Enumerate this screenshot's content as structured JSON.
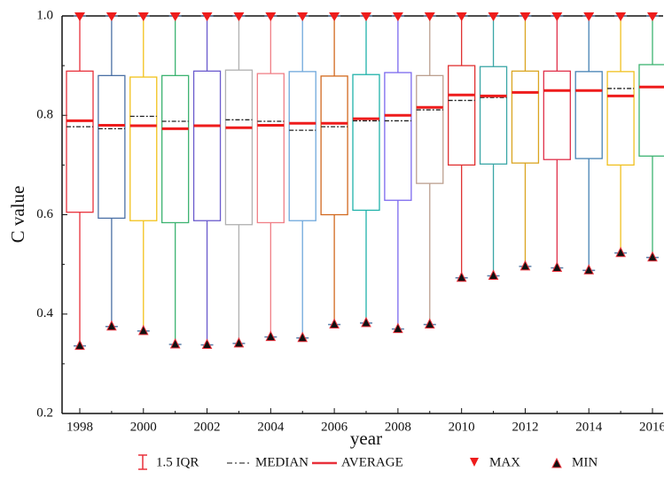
{
  "chart_data": {
    "type": "box",
    "x_label": "year",
    "y_label": "C value",
    "categories": [
      "1998",
      null,
      "2000",
      null,
      "2002",
      null,
      "2004",
      null,
      "2006",
      null,
      "2008",
      null,
      "2010",
      null,
      "2012",
      null,
      "2014",
      null,
      "2016"
    ],
    "colors": [
      "#e8303a",
      "#4a6fa5",
      "#f2c21b",
      "#3cb371",
      "#6a5acd",
      "#b0b0b0",
      "#f07f86",
      "#6fa8dc",
      "#d2691e",
      "#20b2aa",
      "#7b68ee",
      "#bc9f8f",
      "#e03030",
      "#3aa6a6",
      "#daa520",
      "#e0304a",
      "#4682b4",
      "#f0c020",
      "#3cb371"
    ],
    "max": [
      1,
      1,
      1,
      1,
      1,
      1,
      1,
      1,
      1,
      1,
      1,
      1,
      1,
      1,
      1,
      1,
      1,
      1,
      1
    ],
    "q3": [
      0.889,
      0.88,
      0.877,
      0.88,
      0.889,
      0.891,
      0.884,
      0.888,
      0.879,
      0.882,
      0.886,
      0.88,
      0.9,
      0.898,
      0.889,
      0.889,
      0.888,
      0.888,
      0.902
    ],
    "mean": [
      0.789,
      0.78,
      0.779,
      0.773,
      0.779,
      0.775,
      0.78,
      0.784,
      0.784,
      0.793,
      0.8,
      0.816,
      0.841,
      0.839,
      0.846,
      0.85,
      0.85,
      0.839,
      0.857
    ],
    "median": [
      0.777,
      0.773,
      0.798,
      0.788,
      0.779,
      0.791,
      0.788,
      0.77,
      0.777,
      0.789,
      0.789,
      0.811,
      0.83,
      0.836,
      0.846,
      0.85,
      0.85,
      0.854,
      0.857
    ],
    "q1": [
      0.605,
      0.593,
      0.588,
      0.584,
      0.588,
      0.58,
      0.584,
      0.588,
      0.6,
      0.609,
      0.629,
      0.663,
      0.7,
      0.702,
      0.704,
      0.711,
      0.713,
      0.7,
      0.718
    ],
    "min": [
      0.336,
      0.375,
      0.366,
      0.339,
      0.338,
      0.341,
      0.354,
      0.352,
      0.379,
      0.382,
      0.37,
      0.379,
      0.473,
      0.477,
      0.496,
      0.493,
      0.488,
      0.523,
      0.514
    ],
    "ylim": [
      0.2,
      1
    ],
    "yticks": [
      0.2,
      0.4,
      0.6,
      0.8,
      {
        "value": 1,
        "label": "1.0"
      }
    ],
    "legend": [
      "1.5 IQR",
      "MEDIAN",
      "AVERAGE",
      "MAX",
      "MIN"
    ]
  }
}
